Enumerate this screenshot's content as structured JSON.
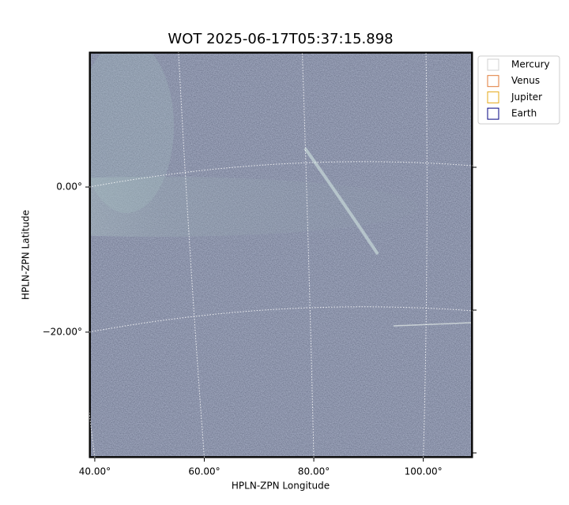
{
  "chart_data": {
    "type": "image",
    "title": "WOT 2025-06-17T05:37:15.898",
    "xlabel": "HPLN-ZPN Longitude",
    "ylabel": "HPLN-ZPN Latitude",
    "xlim": [
      39,
      109
    ],
    "ylim": [
      -37.3,
      18.6
    ],
    "xticks": [
      {
        "value": 40,
        "label": "40.00°"
      },
      {
        "value": 60,
        "label": "60.00°"
      },
      {
        "value": 80,
        "label": "80.00°"
      },
      {
        "value": 100,
        "label": "100.00°"
      }
    ],
    "yticks": [
      {
        "value": 0,
        "label": "0.00°"
      },
      {
        "value": -20,
        "label": "−20.00°"
      }
    ],
    "grid": true,
    "legend": "upper right",
    "series": [
      {
        "name": "Mercury",
        "color": "#d0d0d0"
      },
      {
        "name": "Venus",
        "color": "#e07b39"
      },
      {
        "name": "Jupiter",
        "color": "#e6a817"
      },
      {
        "name": "Earth",
        "color": "#000080"
      }
    ]
  }
}
